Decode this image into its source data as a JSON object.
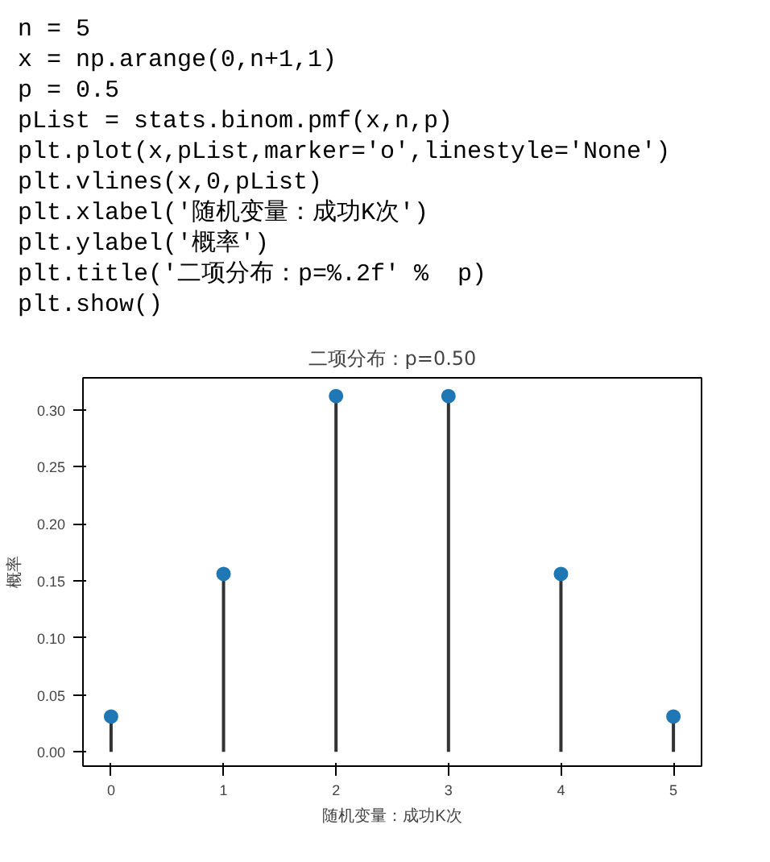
{
  "chart_data": {
    "type": "lollipop",
    "title": "二项分布：p=0.50",
    "xlabel": "随机变量：成功K次",
    "ylabel": "概率",
    "annotations": [
      "n = 5",
      "x = np.arange(0,n+1,1)",
      "p = 0.5",
      "pList = stats.binom.pmf(x,n,p)",
      "plt.plot(x,pList,marker='o',linestyle='None')",
      "plt.vlines(x,0,pList)",
      "plt.xlabel('随机变量：成功K次')",
      "plt.ylabel('概率')",
      "plt.title('二项分布：p=%.2f' %  p)",
      "plt.show()"
    ],
    "x": [
      0,
      1,
      2,
      3,
      4,
      5
    ],
    "series": [
      {
        "color": "#1f77b4",
        "values": [
          0.031,
          0.156,
          0.312,
          0.312,
          0.156,
          0.031
        ]
      }
    ],
    "marker": "circle",
    "xlim": [
      -0.25,
      5.25
    ],
    "ylim": [
      -0.0125,
      0.328
    ],
    "xticks": [
      0,
      1,
      2,
      3,
      4,
      5
    ],
    "yticks": [
      {
        "value": 0,
        "label": "0.00"
      },
      {
        "value": 0.05,
        "label": "0.05"
      },
      {
        "value": 0.1,
        "label": "0.10"
      },
      {
        "value": 0.15,
        "label": "0.15"
      },
      {
        "value": 0.2,
        "label": "0.20"
      },
      {
        "value": 0.25,
        "label": "0.25"
      },
      {
        "value": 0.3,
        "label": "0.30"
      }
    ]
  }
}
